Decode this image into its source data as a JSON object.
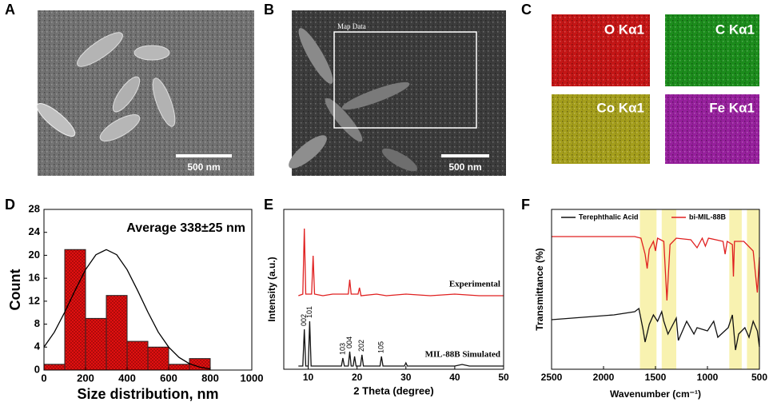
{
  "panels": {
    "labels": [
      "A",
      "B",
      "C",
      "D",
      "E",
      "F"
    ]
  },
  "images": {
    "a": {
      "scale_bar": "500 nm"
    },
    "b": {
      "scale_bar": "500 nm",
      "box_label": "Map Data"
    },
    "c": {
      "maps": [
        "O Kα1",
        "C Kα1",
        "Co Kα1",
        "Fe Kα1"
      ]
    }
  },
  "chart_data": [
    {
      "type": "histogram",
      "annotation": "Average 338±25 nm",
      "xlabel": "Size distribution, nm",
      "ylabel": "Count",
      "bins": [
        0,
        100,
        200,
        300,
        400,
        500,
        600,
        700,
        800
      ],
      "values": [
        1,
        21,
        9,
        13,
        5,
        4,
        1,
        2
      ],
      "color": "#e01010",
      "fit": {
        "color": "#000000",
        "x": [
          0,
          50,
          100,
          150,
          200,
          250,
          300,
          350,
          400,
          450,
          500,
          550,
          600,
          650,
          700,
          750,
          800
        ],
        "values": [
          4.0,
          6.6,
          10.1,
          13.9,
          17.5,
          20.1,
          21,
          20.1,
          17.5,
          13.9,
          10.1,
          6.6,
          4.0,
          2.2,
          1.1,
          0.5,
          0.2
        ]
      },
      "xlim": [
        0,
        1000
      ],
      "xticks": [
        0,
        200,
        400,
        600,
        800,
        1000
      ],
      "ylim": [
        0,
        28
      ],
      "yticks": [
        0,
        4,
        8,
        12,
        16,
        20,
        24,
        28
      ]
    },
    {
      "type": "line",
      "xlabel": "2 Theta (degree)",
      "ylabel": "Intensity (a.u.)",
      "legend": "inline",
      "xlim": [
        5,
        50
      ],
      "xticks": [
        10,
        20,
        30,
        40,
        50
      ],
      "ylim": [
        0,
        100
      ],
      "series": [
        {
          "name": "Experimental",
          "color": "#e02020",
          "x": [
            8,
            8.9,
            9.2,
            9.5,
            10.7,
            11.0,
            11.3,
            13,
            15,
            18.2,
            18.5,
            18.8,
            20.2,
            20.5,
            20.8,
            24,
            26,
            30,
            35,
            40,
            45,
            50
          ],
          "values": [
            46,
            47,
            88,
            47,
            47,
            71,
            47,
            46,
            47,
            47,
            56,
            47,
            47,
            51,
            46,
            47,
            46,
            47,
            46,
            47,
            46,
            46
          ]
        },
        {
          "name": "MIL-88B Simulated",
          "color": "#111111",
          "x": [
            8,
            8.9,
            9.2,
            9.5,
            10.0,
            10.3,
            10.6,
            16.8,
            17.1,
            17.4,
            18.2,
            18.5,
            18.8,
            19.2,
            19.5,
            19.8,
            20.7,
            21.0,
            21.3,
            24.7,
            25.0,
            25.3,
            29.7,
            30,
            30.3,
            40,
            41.5,
            43,
            50
          ],
          "values": [
            2,
            2,
            25,
            2,
            2,
            30,
            2,
            2,
            7,
            2,
            2,
            11,
            2,
            2,
            8,
            2,
            2,
            9,
            2,
            2,
            8,
            2,
            2,
            4,
            2,
            2,
            3,
            2,
            2
          ]
        }
      ],
      "peak_labels": [
        {
          "text": "002",
          "x": 9.2
        },
        {
          "text": "101",
          "x": 10.3
        },
        {
          "text": "103",
          "x": 17.1
        },
        {
          "text": "004",
          "x": 18.5
        },
        {
          "text": "202",
          "x": 21.0
        },
        {
          "text": "105",
          "x": 25.0
        }
      ]
    },
    {
      "type": "line",
      "xlabel": "Wavenumber (cm⁻¹)",
      "ylabel": "Transmittance (%)",
      "legend": "top",
      "xlim": [
        2500,
        500
      ],
      "xticks": [
        2500,
        2000,
        1500,
        1000,
        500
      ],
      "ylim": [
        0,
        100
      ],
      "highlight_bands": [
        [
          1650,
          1490
        ],
        [
          1440,
          1300
        ],
        [
          790,
          670
        ],
        [
          620,
          500
        ]
      ],
      "highlight_color": "#f8f2b0",
      "series": [
        {
          "name": "Terephthalic Acid",
          "color": "#111111",
          "x": [
            2500,
            2300,
            2100,
            1900,
            1700,
            1660,
            1620,
            1600,
            1560,
            1520,
            1480,
            1440,
            1420,
            1380,
            1300,
            1280,
            1200,
            1130,
            1100,
            1000,
            940,
            900,
            800,
            760,
            730,
            700,
            640,
            600,
            560,
            520,
            500
          ],
          "values": [
            31,
            32,
            33,
            34,
            36,
            38,
            25,
            17,
            28,
            34,
            30,
            36,
            30,
            22,
            32,
            18,
            30,
            22,
            26,
            24,
            30,
            20,
            26,
            34,
            12,
            22,
            26,
            20,
            30,
            24,
            14
          ]
        },
        {
          "name": "bi-MIL-88B",
          "color": "#e02020",
          "x": [
            2500,
            2200,
            1900,
            1700,
            1640,
            1600,
            1580,
            1560,
            1520,
            1500,
            1480,
            1420,
            1390,
            1360,
            1300,
            1160,
            1100,
            1050,
            1020,
            990,
            850,
            830,
            810,
            760,
            750,
            740,
            650,
            560,
            520,
            500
          ],
          "values": [
            83,
            83,
            83,
            83,
            82,
            72,
            63,
            75,
            80,
            74,
            82,
            80,
            43,
            78,
            82,
            81,
            76,
            82,
            77,
            82,
            80,
            72,
            80,
            78,
            58,
            80,
            80,
            74,
            48,
            70
          ]
        }
      ]
    }
  ]
}
